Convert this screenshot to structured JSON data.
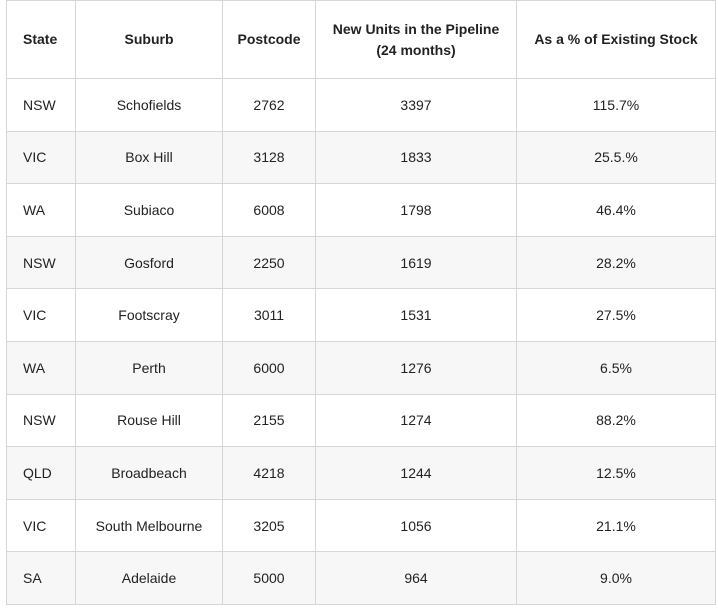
{
  "table": {
    "header": [
      "State",
      "Suburb",
      "Postcode",
      "New Units in the Pipeline (24 months)",
      "As a % of Existing Stock"
    ],
    "rows": [
      [
        "NSW",
        "Schofields",
        "2762",
        "3397",
        "115.7%"
      ],
      [
        "VIC",
        "Box Hill",
        "3128",
        "1833",
        "25.5.%"
      ],
      [
        "WA",
        "Subiaco",
        "6008",
        "1798",
        "46.4%"
      ],
      [
        "NSW",
        "Gosford",
        "2250",
        "1619",
        "28.2%"
      ],
      [
        "VIC",
        "Footscray",
        "3011",
        "1531",
        "27.5%"
      ],
      [
        "WA",
        "Perth",
        "6000",
        "1276",
        "6.5%"
      ],
      [
        "NSW",
        "Rouse Hill",
        "2155",
        "1274",
        "88.2%"
      ],
      [
        "QLD",
        "Broadbeach",
        "4218",
        "1244",
        "12.5%"
      ],
      [
        "VIC",
        "South Melbourne",
        "3205",
        "1056",
        "21.1%"
      ],
      [
        "SA",
        "Adelaide",
        "5000",
        "964",
        "9.0%"
      ]
    ]
  }
}
